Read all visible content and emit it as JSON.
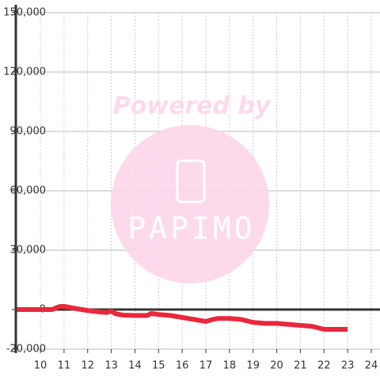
{
  "chart_data": {
    "type": "line",
    "watermark": {
      "title": "Powered by",
      "logo": "PAPIMO"
    },
    "x": [
      9,
      10,
      10.5,
      10.8,
      11,
      11.5,
      12,
      12.5,
      12.8,
      13,
      13.2,
      13.5,
      14,
      14.5,
      14.7,
      15,
      15.5,
      16,
      16.5,
      17,
      17.3,
      17.5,
      18,
      18.5,
      19,
      19.5,
      20,
      20.5,
      21,
      21.5,
      22,
      22.5,
      23
    ],
    "series": [
      {
        "color": "#e8283c",
        "values": [
          0,
          0,
          0,
          1500,
          1600,
          500,
          -500,
          -1200,
          -1500,
          -800,
          -2200,
          -2800,
          -3000,
          -3000,
          -2000,
          -2500,
          -3000,
          -4000,
          -5000,
          -6000,
          -5000,
          -4500,
          -4500,
          -5000,
          -6500,
          -7000,
          -7000,
          -7500,
          -8000,
          -8500,
          -10000,
          -10000,
          -10000
        ]
      }
    ],
    "xlim": [
      8.96,
      24.37
    ],
    "ylim": [
      -20000,
      150000
    ],
    "xticks": [
      10,
      11,
      12,
      13,
      14,
      15,
      16,
      17,
      18,
      19,
      20,
      21,
      22,
      23,
      24
    ],
    "yticks": [
      {
        "value": -20000,
        "label": "-20,000"
      },
      0,
      {
        "value": 30000,
        "label": "30,000"
      },
      {
        "value": 60000,
        "label": "60,000"
      },
      {
        "value": 90000,
        "label": "90,000"
      },
      {
        "value": 120000,
        "label": "120,000"
      },
      {
        "value": 150000,
        "label": "150,000"
      }
    ],
    "grid": true
  }
}
